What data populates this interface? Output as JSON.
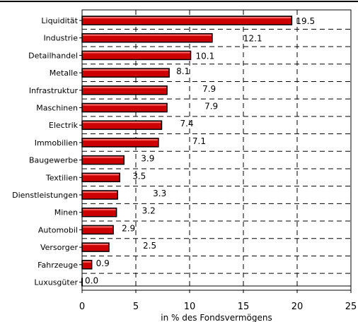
{
  "colors": {
    "bar_fill": "#cc0000",
    "bar_edge": "#000000",
    "grid": "#000000"
  },
  "chart_data": {
    "type": "bar",
    "orientation": "horizontal",
    "title": "",
    "xlabel": "in % des Fondsvermögens",
    "ylabel": "",
    "xlim": [
      0,
      25
    ],
    "xticks": [
      0,
      5,
      10,
      15,
      20,
      25
    ],
    "grid": true,
    "categories": [
      "Liquidität",
      "Industrie",
      "Detailhandel",
      "Metalle",
      "Infrastruktur",
      "Maschinen",
      "Electrik",
      "Immobilien",
      "Baugewerbe",
      "Textilien",
      "Dienstleistungen",
      "Minen",
      "Automobil",
      "Versorger",
      "Fahrzeuge",
      "Luxusgüter"
    ],
    "values": [
      19.5,
      12.1,
      10.1,
      8.1,
      7.9,
      7.9,
      7.4,
      7.1,
      3.9,
      3.5,
      3.3,
      3.2,
      2.9,
      2.5,
      0.9,
      0.0
    ],
    "data_labels": [
      "19.5",
      "12.1",
      "10.1",
      "8.1",
      "7.9",
      "7.9",
      "7.4",
      "7.1",
      "3.9",
      "3.5",
      "3.3",
      "3.2",
      "2.9",
      "2.5",
      "0.9",
      "0.0"
    ]
  }
}
